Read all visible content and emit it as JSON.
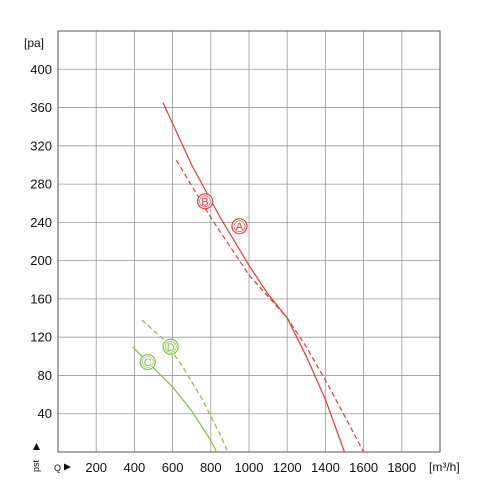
{
  "chart_data": {
    "type": "line",
    "y_unit": "[pa]",
    "x_unit": "[m³/h]",
    "x_axis_symbol": "Q",
    "y_axis_symbol": "pst",
    "xlim": [
      0,
      2000
    ],
    "ylim": [
      0,
      440
    ],
    "x_ticks": [
      200,
      400,
      600,
      800,
      1000,
      1200,
      1400,
      1600,
      1800
    ],
    "x_tick_labels": [
      "200",
      "400",
      "600",
      "800",
      "1000",
      "1200",
      "1400",
      "1600",
      "1800"
    ],
    "y_ticks": [
      40,
      80,
      120,
      160,
      200,
      240,
      280,
      320,
      360,
      400
    ],
    "y_tick_labels": [
      "40",
      "80",
      "120",
      "160",
      "200",
      "240",
      "280",
      "320",
      "360",
      "400"
    ],
    "grid": true,
    "series": [
      {
        "name": "A",
        "color": "#e8393b",
        "dash": "solid",
        "points": [
          [
            550,
            365
          ],
          [
            700,
            300
          ],
          [
            850,
            245
          ],
          [
            1000,
            195
          ],
          [
            1100,
            165
          ],
          [
            1200,
            140
          ],
          [
            1300,
            100
          ],
          [
            1400,
            55
          ],
          [
            1500,
            0
          ]
        ],
        "marker_at": [
          950,
          236
        ]
      },
      {
        "name": "B",
        "color": "#e8393b",
        "dash": "dashed",
        "points": [
          [
            620,
            305
          ],
          [
            800,
            245
          ],
          [
            1000,
            185
          ],
          [
            1200,
            140
          ],
          [
            1300,
            110
          ],
          [
            1400,
            75
          ],
          [
            1500,
            38
          ],
          [
            1600,
            0
          ]
        ],
        "marker_at": [
          770,
          262
        ]
      },
      {
        "name": "C",
        "color": "#7fc241",
        "dash": "solid",
        "points": [
          [
            390,
            110
          ],
          [
            500,
            88
          ],
          [
            600,
            68
          ],
          [
            700,
            43
          ],
          [
            800,
            12
          ],
          [
            830,
            0
          ]
        ],
        "marker_at": [
          470,
          94
        ]
      },
      {
        "name": "D",
        "color": "#7fc241",
        "dash": "dashed",
        "points": [
          [
            440,
            138
          ],
          [
            550,
            118
          ],
          [
            650,
            90
          ],
          [
            750,
            57
          ],
          [
            850,
            18
          ],
          [
            890,
            0
          ]
        ],
        "marker_at": [
          590,
          110
        ]
      }
    ]
  }
}
